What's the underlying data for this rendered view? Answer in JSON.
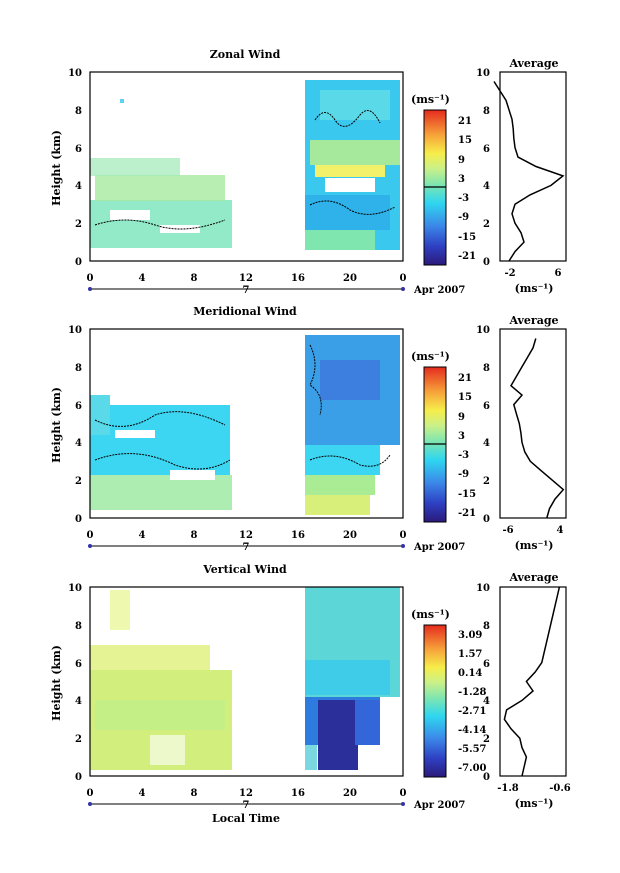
{
  "panels": [
    {
      "title": "Zonal Wind",
      "ylabel": "Height (km)",
      "y_ticks": [
        "0",
        "2",
        "4",
        "6",
        "8",
        "10"
      ],
      "x_ticks": [
        "0",
        "4",
        "8",
        "12",
        "16",
        "20",
        "0"
      ],
      "day_label": "7",
      "date_label": "Apr 2007",
      "colorbar": {
        "unit": "(ms⁻¹)",
        "ticks": [
          "21",
          "15",
          "9",
          "3",
          "-3",
          "-9",
          "-15",
          "-21"
        ]
      },
      "avg": {
        "title": "Average",
        "x_ticks": [
          "-2",
          "6"
        ],
        "xlabel": "(ms⁻¹)",
        "y_ticks": [
          "0",
          "2",
          "4",
          "6",
          "8",
          "10"
        ]
      }
    },
    {
      "title": "Meridional Wind",
      "ylabel": "Height (km)",
      "y_ticks": [
        "0",
        "2",
        "4",
        "6",
        "8",
        "10"
      ],
      "x_ticks": [
        "0",
        "4",
        "8",
        "12",
        "16",
        "20",
        "0"
      ],
      "day_label": "7",
      "date_label": "Apr 2007",
      "colorbar": {
        "unit": "(ms⁻¹)",
        "ticks": [
          "21",
          "15",
          "9",
          "3",
          "-3",
          "-9",
          "-15",
          "-21"
        ]
      },
      "avg": {
        "title": "Average",
        "x_ticks": [
          "-6",
          "4"
        ],
        "xlabel": "(ms⁻¹)",
        "y_ticks": [
          "0",
          "2",
          "4",
          "6",
          "8",
          "10"
        ]
      }
    },
    {
      "title": "Vertical Wind",
      "ylabel": "Height (km)",
      "y_ticks": [
        "0",
        "2",
        "4",
        "6",
        "8",
        "10"
      ],
      "x_ticks": [
        "0",
        "4",
        "8",
        "12",
        "16",
        "20",
        "0"
      ],
      "day_label": "7",
      "date_label": "Apr 2007",
      "xlabel": "Local Time",
      "colorbar": {
        "unit": "(ms⁻¹)",
        "ticks": [
          "3.09",
          "1.57",
          "0.14",
          "-1.28",
          "-2.71",
          "-4.14",
          "-5.57",
          "-7.00"
        ]
      },
      "avg": {
        "title": "Average",
        "x_ticks": [
          "-1.8",
          "-0.6"
        ],
        "xlabel": "(ms⁻¹)",
        "y_ticks": [
          "0",
          "2",
          "4",
          "6",
          "8",
          "10"
        ]
      }
    }
  ],
  "chart_data": [
    {
      "type": "heatmap",
      "title": "Zonal Wind",
      "xlabel": "",
      "ylabel": "Height (km)",
      "xlim": [
        0,
        24
      ],
      "ylim": [
        0,
        10
      ],
      "colorbar_range": [
        -21,
        21
      ],
      "data_coverage": [
        {
          "x": [
            0,
            11
          ],
          "y": [
            0.6,
            5.6
          ],
          "typical_value": -5
        },
        {
          "x": [
            17,
            24
          ],
          "y": [
            0.2,
            9.6
          ],
          "typical_value": -6
        }
      ],
      "average_profile": {
        "height": [
          0,
          0.5,
          1,
          1.5,
          2,
          2.5,
          3,
          3.5,
          4,
          4.5,
          5,
          5.5,
          6,
          6.5,
          7,
          7.5,
          8,
          8.5,
          9,
          9.5
        ],
        "value": [
          -1.5,
          -0.5,
          1.0,
          0.5,
          -0.5,
          -1.0,
          -0.5,
          2.0,
          5.5,
          7.5,
          3.0,
          0,
          -0.5,
          -0.7,
          -0.8,
          -1.0,
          -1.5,
          -2.0,
          -3.0,
          -4.0
        ]
      }
    },
    {
      "type": "heatmap",
      "title": "Meridional Wind",
      "xlabel": "",
      "ylabel": "Height (km)",
      "xlim": [
        0,
        24
      ],
      "ylim": [
        0,
        10
      ],
      "colorbar_range": [
        -21,
        21
      ],
      "data_coverage": [
        {
          "x": [
            0,
            11
          ],
          "y": [
            0.3,
            5.9
          ],
          "typical_value": -2
        },
        {
          "x": [
            17,
            24
          ],
          "y": [
            0.3,
            9.3
          ],
          "typical_value": -7
        }
      ],
      "average_profile": {
        "height": [
          0,
          0.5,
          1,
          1.5,
          2,
          2.5,
          3,
          3.5,
          4,
          4.5,
          5,
          5.5,
          6,
          6.5,
          7,
          7.5,
          8,
          8.5,
          9,
          9.5
        ],
        "value": [
          1.5,
          2.0,
          3.0,
          4.5,
          2.5,
          0.5,
          -1.5,
          -2.5,
          -3.0,
          -3.2,
          -3.5,
          -4.0,
          -4.5,
          -3.0,
          -5.0,
          -4.0,
          -3.0,
          -2.0,
          -1.0,
          -0.5
        ]
      }
    },
    {
      "type": "heatmap",
      "title": "Vertical Wind",
      "xlabel": "Local Time",
      "ylabel": "Height (km)",
      "xlim": [
        0,
        24
      ],
      "ylim": [
        0,
        10
      ],
      "colorbar_range": [
        -7.0,
        3.09
      ],
      "data_coverage": [
        {
          "x": [
            0,
            11
          ],
          "y": [
            0.3,
            5.5
          ],
          "typical_value": 0.5
        },
        {
          "x": [
            17,
            23
          ],
          "y": [
            0.2,
            10
          ],
          "typical_value": -2.0
        },
        {
          "x": [
            18,
            20
          ],
          "y": [
            0.3,
            4.0
          ],
          "typical_value": -7.0
        }
      ],
      "average_profile": {
        "height": [
          0,
          0.5,
          1,
          1.5,
          2,
          2.5,
          3,
          3.5,
          4,
          4.5,
          5,
          5.5,
          6,
          6.5,
          7,
          7.5,
          8,
          8.5,
          9,
          9.5,
          10
        ],
        "value": [
          -1.5,
          -1.45,
          -1.4,
          -1.5,
          -1.55,
          -1.75,
          -1.9,
          -1.85,
          -1.5,
          -1.25,
          -1.4,
          -1.2,
          -1.05,
          -1.0,
          -0.95,
          -0.9,
          -0.85,
          -0.8,
          -0.75,
          -0.7,
          -0.65
        ]
      }
    }
  ]
}
